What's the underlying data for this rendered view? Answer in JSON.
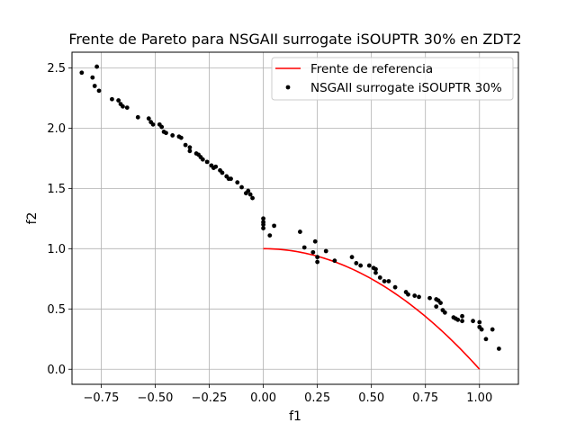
{
  "chart_data": {
    "type": "scatter",
    "title": "Frente de Pareto para NSGAII surrogate iSOUPTR 30% en ZDT2",
    "xlabel": "f1",
    "ylabel": "f2",
    "xlim": [
      -0.885,
      1.18
    ],
    "ylim": [
      -0.125,
      2.63
    ],
    "grid": true,
    "legend_position": "top-right",
    "xticks": [
      -0.75,
      -0.5,
      -0.25,
      0.0,
      0.25,
      0.5,
      0.75,
      1.0
    ],
    "xtick_labels": [
      "−0.75",
      "−0.50",
      "−0.25",
      "0.00",
      "0.25",
      "0.50",
      "0.75",
      "1.00"
    ],
    "yticks": [
      0.0,
      0.5,
      1.0,
      1.5,
      2.0,
      2.5
    ],
    "ytick_labels": [
      "0.0",
      "0.5",
      "1.0",
      "1.5",
      "2.0",
      "2.5"
    ],
    "reference_front": {
      "name": "Frente de referencia",
      "color": "#ff0000",
      "function": "f2 = 1 - f1^2",
      "x_range": [
        0,
        1
      ]
    },
    "series": [
      {
        "name": "NSGAII surrogate iSOUPTR 30%",
        "color": "#000000",
        "points": [
          [
            -0.84,
            2.46
          ],
          [
            -0.79,
            2.42
          ],
          [
            -0.78,
            2.35
          ],
          [
            -0.77,
            2.51
          ],
          [
            -0.76,
            2.31
          ],
          [
            -0.7,
            2.24
          ],
          [
            -0.67,
            2.23
          ],
          [
            -0.66,
            2.2
          ],
          [
            -0.65,
            2.18
          ],
          [
            -0.63,
            2.17
          ],
          [
            -0.58,
            2.09
          ],
          [
            -0.53,
            2.08
          ],
          [
            -0.52,
            2.05
          ],
          [
            -0.51,
            2.03
          ],
          [
            -0.48,
            2.03
          ],
          [
            -0.47,
            2.01
          ],
          [
            -0.46,
            1.97
          ],
          [
            -0.45,
            1.96
          ],
          [
            -0.42,
            1.94
          ],
          [
            -0.39,
            1.93
          ],
          [
            -0.38,
            1.92
          ],
          [
            -0.36,
            1.86
          ],
          [
            -0.34,
            1.84
          ],
          [
            -0.34,
            1.81
          ],
          [
            -0.31,
            1.79
          ],
          [
            -0.3,
            1.78
          ],
          [
            -0.29,
            1.76
          ],
          [
            -0.28,
            1.74
          ],
          [
            -0.26,
            1.72
          ],
          [
            -0.24,
            1.69
          ],
          [
            -0.23,
            1.67
          ],
          [
            -0.22,
            1.68
          ],
          [
            -0.2,
            1.65
          ],
          [
            -0.19,
            1.63
          ],
          [
            -0.17,
            1.6
          ],
          [
            -0.16,
            1.58
          ],
          [
            -0.15,
            1.58
          ],
          [
            -0.12,
            1.55
          ],
          [
            -0.1,
            1.51
          ],
          [
            -0.08,
            1.46
          ],
          [
            -0.07,
            1.48
          ],
          [
            -0.06,
            1.45
          ],
          [
            -0.05,
            1.42
          ],
          [
            0.0,
            1.25
          ],
          [
            0.0,
            1.22
          ],
          [
            0.0,
            1.2
          ],
          [
            0.0,
            1.17
          ],
          [
            0.03,
            1.11
          ],
          [
            0.05,
            1.19
          ],
          [
            0.17,
            1.14
          ],
          [
            0.19,
            1.01
          ],
          [
            0.23,
            0.97
          ],
          [
            0.24,
            1.06
          ],
          [
            0.25,
            0.93
          ],
          [
            0.25,
            0.89
          ],
          [
            0.29,
            0.98
          ],
          [
            0.33,
            0.9
          ],
          [
            0.41,
            0.93
          ],
          [
            0.43,
            0.88
          ],
          [
            0.45,
            0.86
          ],
          [
            0.49,
            0.86
          ],
          [
            0.51,
            0.84
          ],
          [
            0.52,
            0.83
          ],
          [
            0.52,
            0.8
          ],
          [
            0.54,
            0.76
          ],
          [
            0.56,
            0.73
          ],
          [
            0.58,
            0.73
          ],
          [
            0.61,
            0.68
          ],
          [
            0.66,
            0.64
          ],
          [
            0.67,
            0.62
          ],
          [
            0.7,
            0.61
          ],
          [
            0.72,
            0.6
          ],
          [
            0.77,
            0.59
          ],
          [
            0.8,
            0.58
          ],
          [
            0.81,
            0.57
          ],
          [
            0.82,
            0.55
          ],
          [
            0.8,
            0.52
          ],
          [
            0.83,
            0.49
          ],
          [
            0.84,
            0.47
          ],
          [
            0.88,
            0.43
          ],
          [
            0.89,
            0.42
          ],
          [
            0.9,
            0.41
          ],
          [
            0.92,
            0.44
          ],
          [
            0.92,
            0.4
          ],
          [
            0.97,
            0.4
          ],
          [
            1.0,
            0.39
          ],
          [
            1.0,
            0.35
          ],
          [
            1.01,
            0.33
          ],
          [
            1.03,
            0.25
          ],
          [
            1.06,
            0.33
          ],
          [
            1.09,
            0.17
          ]
        ]
      }
    ]
  }
}
